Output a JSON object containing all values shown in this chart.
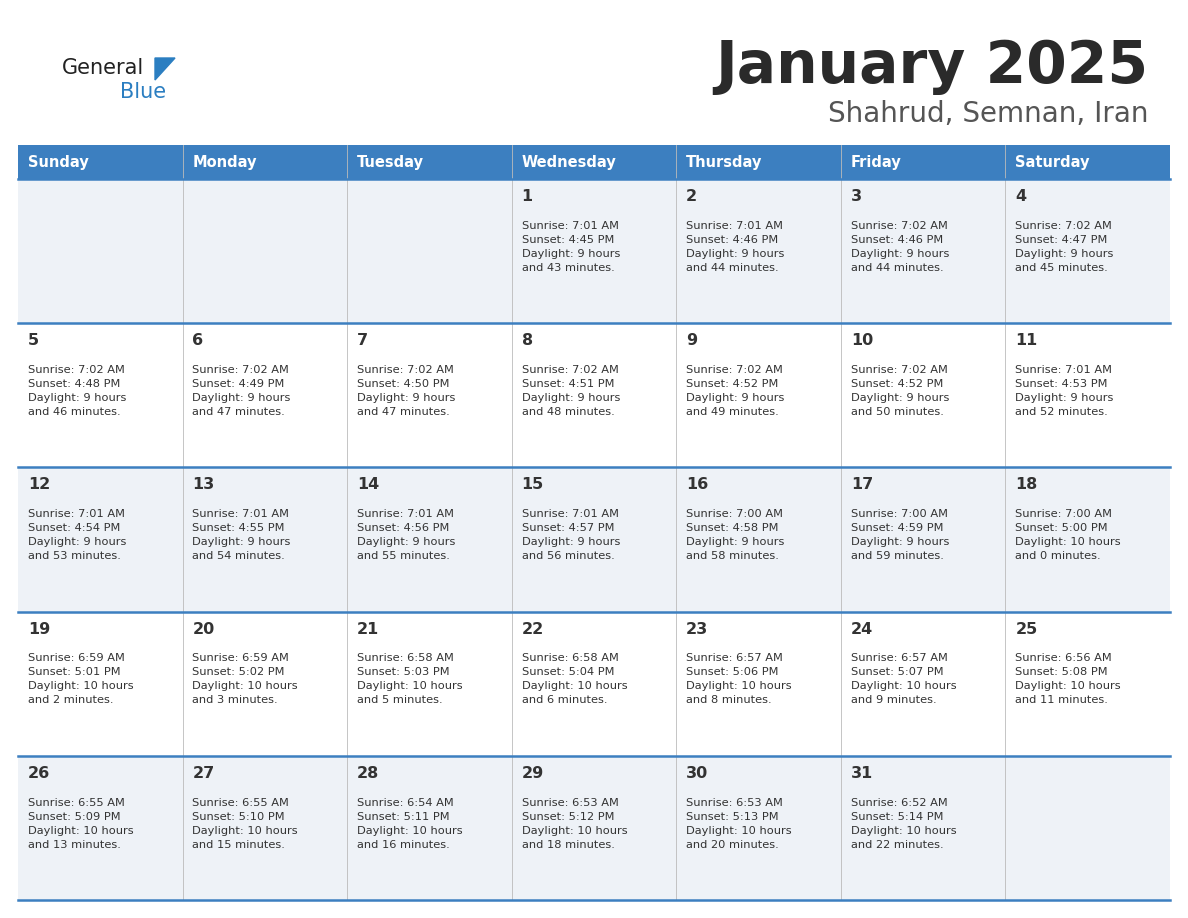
{
  "title": "January 2025",
  "subtitle": "Shahrud, Semnan, Iran",
  "days_of_week": [
    "Sunday",
    "Monday",
    "Tuesday",
    "Wednesday",
    "Thursday",
    "Friday",
    "Saturday"
  ],
  "header_bg": "#3c7fc0",
  "header_text": "#ffffff",
  "row_bg_light": "#eef2f7",
  "row_bg_white": "#ffffff",
  "divider_color": "#3c7fc0",
  "text_color": "#333333",
  "logo_color": "#2b7ec1",
  "cell_data": [
    [
      null,
      null,
      null,
      {
        "day": "1",
        "sunrise": "7:01 AM",
        "sunset": "4:45 PM",
        "daylight": "9 hours\nand 43 minutes."
      },
      {
        "day": "2",
        "sunrise": "7:01 AM",
        "sunset": "4:46 PM",
        "daylight": "9 hours\nand 44 minutes."
      },
      {
        "day": "3",
        "sunrise": "7:02 AM",
        "sunset": "4:46 PM",
        "daylight": "9 hours\nand 44 minutes."
      },
      {
        "day": "4",
        "sunrise": "7:02 AM",
        "sunset": "4:47 PM",
        "daylight": "9 hours\nand 45 minutes."
      }
    ],
    [
      {
        "day": "5",
        "sunrise": "7:02 AM",
        "sunset": "4:48 PM",
        "daylight": "9 hours\nand 46 minutes."
      },
      {
        "day": "6",
        "sunrise": "7:02 AM",
        "sunset": "4:49 PM",
        "daylight": "9 hours\nand 47 minutes."
      },
      {
        "day": "7",
        "sunrise": "7:02 AM",
        "sunset": "4:50 PM",
        "daylight": "9 hours\nand 47 minutes."
      },
      {
        "day": "8",
        "sunrise": "7:02 AM",
        "sunset": "4:51 PM",
        "daylight": "9 hours\nand 48 minutes."
      },
      {
        "day": "9",
        "sunrise": "7:02 AM",
        "sunset": "4:52 PM",
        "daylight": "9 hours\nand 49 minutes."
      },
      {
        "day": "10",
        "sunrise": "7:02 AM",
        "sunset": "4:52 PM",
        "daylight": "9 hours\nand 50 minutes."
      },
      {
        "day": "11",
        "sunrise": "7:01 AM",
        "sunset": "4:53 PM",
        "daylight": "9 hours\nand 52 minutes."
      }
    ],
    [
      {
        "day": "12",
        "sunrise": "7:01 AM",
        "sunset": "4:54 PM",
        "daylight": "9 hours\nand 53 minutes."
      },
      {
        "day": "13",
        "sunrise": "7:01 AM",
        "sunset": "4:55 PM",
        "daylight": "9 hours\nand 54 minutes."
      },
      {
        "day": "14",
        "sunrise": "7:01 AM",
        "sunset": "4:56 PM",
        "daylight": "9 hours\nand 55 minutes."
      },
      {
        "day": "15",
        "sunrise": "7:01 AM",
        "sunset": "4:57 PM",
        "daylight": "9 hours\nand 56 minutes."
      },
      {
        "day": "16",
        "sunrise": "7:00 AM",
        "sunset": "4:58 PM",
        "daylight": "9 hours\nand 58 minutes."
      },
      {
        "day": "17",
        "sunrise": "7:00 AM",
        "sunset": "4:59 PM",
        "daylight": "9 hours\nand 59 minutes."
      },
      {
        "day": "18",
        "sunrise": "7:00 AM",
        "sunset": "5:00 PM",
        "daylight": "10 hours\nand 0 minutes."
      }
    ],
    [
      {
        "day": "19",
        "sunrise": "6:59 AM",
        "sunset": "5:01 PM",
        "daylight": "10 hours\nand 2 minutes."
      },
      {
        "day": "20",
        "sunrise": "6:59 AM",
        "sunset": "5:02 PM",
        "daylight": "10 hours\nand 3 minutes."
      },
      {
        "day": "21",
        "sunrise": "6:58 AM",
        "sunset": "5:03 PM",
        "daylight": "10 hours\nand 5 minutes."
      },
      {
        "day": "22",
        "sunrise": "6:58 AM",
        "sunset": "5:04 PM",
        "daylight": "10 hours\nand 6 minutes."
      },
      {
        "day": "23",
        "sunrise": "6:57 AM",
        "sunset": "5:06 PM",
        "daylight": "10 hours\nand 8 minutes."
      },
      {
        "day": "24",
        "sunrise": "6:57 AM",
        "sunset": "5:07 PM",
        "daylight": "10 hours\nand 9 minutes."
      },
      {
        "day": "25",
        "sunrise": "6:56 AM",
        "sunset": "5:08 PM",
        "daylight": "10 hours\nand 11 minutes."
      }
    ],
    [
      {
        "day": "26",
        "sunrise": "6:55 AM",
        "sunset": "5:09 PM",
        "daylight": "10 hours\nand 13 minutes."
      },
      {
        "day": "27",
        "sunrise": "6:55 AM",
        "sunset": "5:10 PM",
        "daylight": "10 hours\nand 15 minutes."
      },
      {
        "day": "28",
        "sunrise": "6:54 AM",
        "sunset": "5:11 PM",
        "daylight": "10 hours\nand 16 minutes."
      },
      {
        "day": "29",
        "sunrise": "6:53 AM",
        "sunset": "5:12 PM",
        "daylight": "10 hours\nand 18 minutes."
      },
      {
        "day": "30",
        "sunrise": "6:53 AM",
        "sunset": "5:13 PM",
        "daylight": "10 hours\nand 20 minutes."
      },
      {
        "day": "31",
        "sunrise": "6:52 AM",
        "sunset": "5:14 PM",
        "daylight": "10 hours\nand 22 minutes."
      },
      null
    ]
  ]
}
